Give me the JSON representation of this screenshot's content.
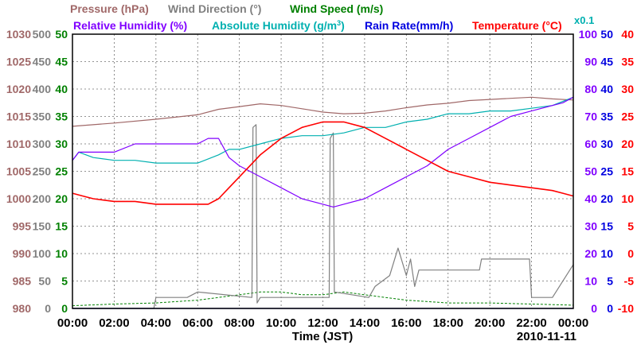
{
  "chart_data": {
    "type": "line",
    "date_label": "2010-11-11",
    "xlabel": "Time (JST)",
    "x_ticks": [
      "00:00",
      "02:00",
      "04:00",
      "06:00",
      "08:00",
      "10:00",
      "12:00",
      "14:00",
      "16:00",
      "18:00",
      "20:00",
      "22:00",
      "00:00"
    ],
    "x_range_hours": [
      0,
      24
    ],
    "titles": {
      "pressure": "Pressure (hPa)",
      "wind_direction": "Wind Direction (°)",
      "wind_speed": "Wind Speed (m/s)",
      "relative_humidity": "Relative Humidity (%)",
      "absolute_humidity": "Absolute Humidity (g/m",
      "absolute_humidity_sup": "3",
      "absolute_humidity_close": ")",
      "rain_rate": "Rain Rate(mm/h)",
      "temperature": "Temperature (°C)",
      "rain_scale": "x0.1"
    },
    "axes": {
      "pressure": {
        "min": 980,
        "max": 1030,
        "ticks": [
          "1030",
          "1025",
          "1020",
          "1015",
          "1010",
          "1005",
          "1000",
          "995",
          "990",
          "985",
          "980"
        ]
      },
      "wind_direction": {
        "min": 0,
        "max": 500,
        "ticks": [
          "500",
          "450",
          "400",
          "350",
          "300",
          "250",
          "200",
          "150",
          "100",
          "50",
          "0"
        ]
      },
      "wind_speed": {
        "min": 0,
        "max": 50,
        "ticks": [
          "50",
          "45",
          "40",
          "35",
          "30",
          "25",
          "20",
          "15",
          "10",
          "5",
          "0"
        ]
      },
      "humidity": {
        "min": 0,
        "max": 100,
        "ticks": [
          "100",
          "90",
          "80",
          "70",
          "60",
          "50",
          "40",
          "30",
          "20",
          "10",
          "0"
        ]
      },
      "rain_rate": {
        "min": 0,
        "max": 50,
        "ticks": [
          "50",
          "45",
          "40",
          "35",
          "30",
          "25",
          "20",
          "15",
          "10",
          "5",
          "0"
        ]
      },
      "temperature": {
        "min": -10,
        "max": 40,
        "ticks": [
          "40",
          "35",
          "30",
          "25",
          "20",
          "15",
          "10",
          "5",
          "0",
          "-5",
          "-10"
        ]
      }
    },
    "colors": {
      "pressure": "#a06868",
      "wind_direction": "#808080",
      "wind_speed": "#008000",
      "relative_humidity": "#8000ff",
      "absolute_humidity": "#00b0b0",
      "rain_rate": "#0000e0",
      "temperature": "#ff0000",
      "grid": "#707070",
      "axis_text": "#000000"
    },
    "series": [
      {
        "name": "Pressure",
        "axis": "pressure",
        "x": [
          0,
          2,
          4,
          6,
          7,
          8,
          9,
          10,
          11,
          12,
          13,
          14,
          15,
          16,
          17,
          18,
          19,
          20,
          21,
          22,
          23,
          24
        ],
        "values": [
          1013.2,
          1013.8,
          1014.5,
          1015.3,
          1016.3,
          1016.8,
          1017.3,
          1017.0,
          1016.4,
          1015.8,
          1015.5,
          1015.6,
          1016.0,
          1016.6,
          1017.1,
          1017.4,
          1017.9,
          1018.1,
          1018.3,
          1018.5,
          1018.2,
          1018.0
        ]
      },
      {
        "name": "Wind Direction",
        "axis": "wind_direction",
        "x": [
          0,
          2,
          3,
          3.9,
          4.0,
          5.5,
          6.0,
          8.6,
          8.65,
          8.8,
          8.85,
          9.0,
          12.3,
          12.35,
          12.5,
          12.55,
          14.2,
          14.5,
          15.2,
          15.6,
          16.0,
          16.2,
          16.4,
          16.6,
          17.0,
          19.5,
          19.6,
          21.9,
          22.0,
          23.0,
          24
        ],
        "values": [
          0,
          0,
          0,
          0,
          20,
          20,
          30,
          20,
          330,
          335,
          10,
          20,
          20,
          310,
          320,
          30,
          20,
          40,
          60,
          110,
          60,
          90,
          40,
          70,
          70,
          70,
          90,
          90,
          20,
          20,
          80
        ]
      },
      {
        "name": "Wind Speed",
        "axis": "wind_speed",
        "x": [
          0,
          2,
          4,
          6,
          7,
          8,
          9,
          10,
          11,
          12,
          13,
          14,
          15,
          16,
          18,
          20,
          22,
          24
        ],
        "values": [
          0.5,
          0.8,
          1.0,
          1.5,
          2.0,
          2.5,
          3.0,
          3.0,
          2.5,
          2.5,
          3.0,
          2.5,
          2.0,
          1.5,
          1.0,
          1.0,
          0.8,
          0.6
        ]
      },
      {
        "name": "Relative Humidity",
        "axis": "humidity",
        "x": [
          0,
          0.3,
          1,
          2,
          3,
          4,
          5,
          6,
          6.5,
          7,
          7.5,
          8,
          9,
          10,
          11,
          12,
          12.5,
          13,
          14,
          15,
          16,
          17,
          18,
          19,
          20,
          21,
          22,
          23,
          23.5,
          24
        ],
        "values": [
          54,
          57,
          57,
          57,
          60,
          60,
          60,
          60,
          62,
          62,
          55,
          52,
          48,
          44,
          40,
          38,
          37,
          38,
          40,
          44,
          48,
          52,
          58,
          62,
          66,
          70,
          72,
          74,
          75,
          77
        ]
      },
      {
        "name": "Absolute Humidity",
        "axis": "humidity",
        "x": [
          0,
          0.3,
          1,
          2,
          3,
          4,
          5,
          6,
          7,
          7.5,
          8,
          9,
          10,
          11,
          12,
          13,
          14,
          15,
          16,
          17,
          18,
          19,
          20,
          21,
          22,
          23,
          24
        ],
        "values": [
          54,
          57,
          55,
          54,
          54,
          53,
          53,
          53,
          56,
          58,
          58,
          60,
          62,
          63,
          63,
          64,
          66,
          66,
          68,
          69,
          71,
          71,
          72,
          72,
          73,
          74,
          77
        ]
      },
      {
        "name": "Rain Rate",
        "axis": "rain_rate",
        "x": [
          0,
          24
        ],
        "values": [
          0,
          0
        ]
      },
      {
        "name": "Temperature",
        "axis": "temperature",
        "x": [
          0,
          0.5,
          1,
          2,
          3,
          4,
          5,
          6,
          6.5,
          7,
          7.5,
          8,
          9,
          10,
          11,
          12,
          13,
          14,
          15,
          16,
          17,
          18,
          19,
          20,
          21,
          22,
          23,
          23.5,
          24
        ],
        "values": [
          11,
          10.5,
          10,
          9.5,
          9.5,
          9,
          9,
          9,
          9,
          10,
          12,
          14,
          18,
          21,
          23,
          24,
          24,
          23,
          21,
          19,
          17,
          15,
          14,
          13,
          12.5,
          12,
          11.5,
          11,
          10.5
        ]
      }
    ]
  }
}
